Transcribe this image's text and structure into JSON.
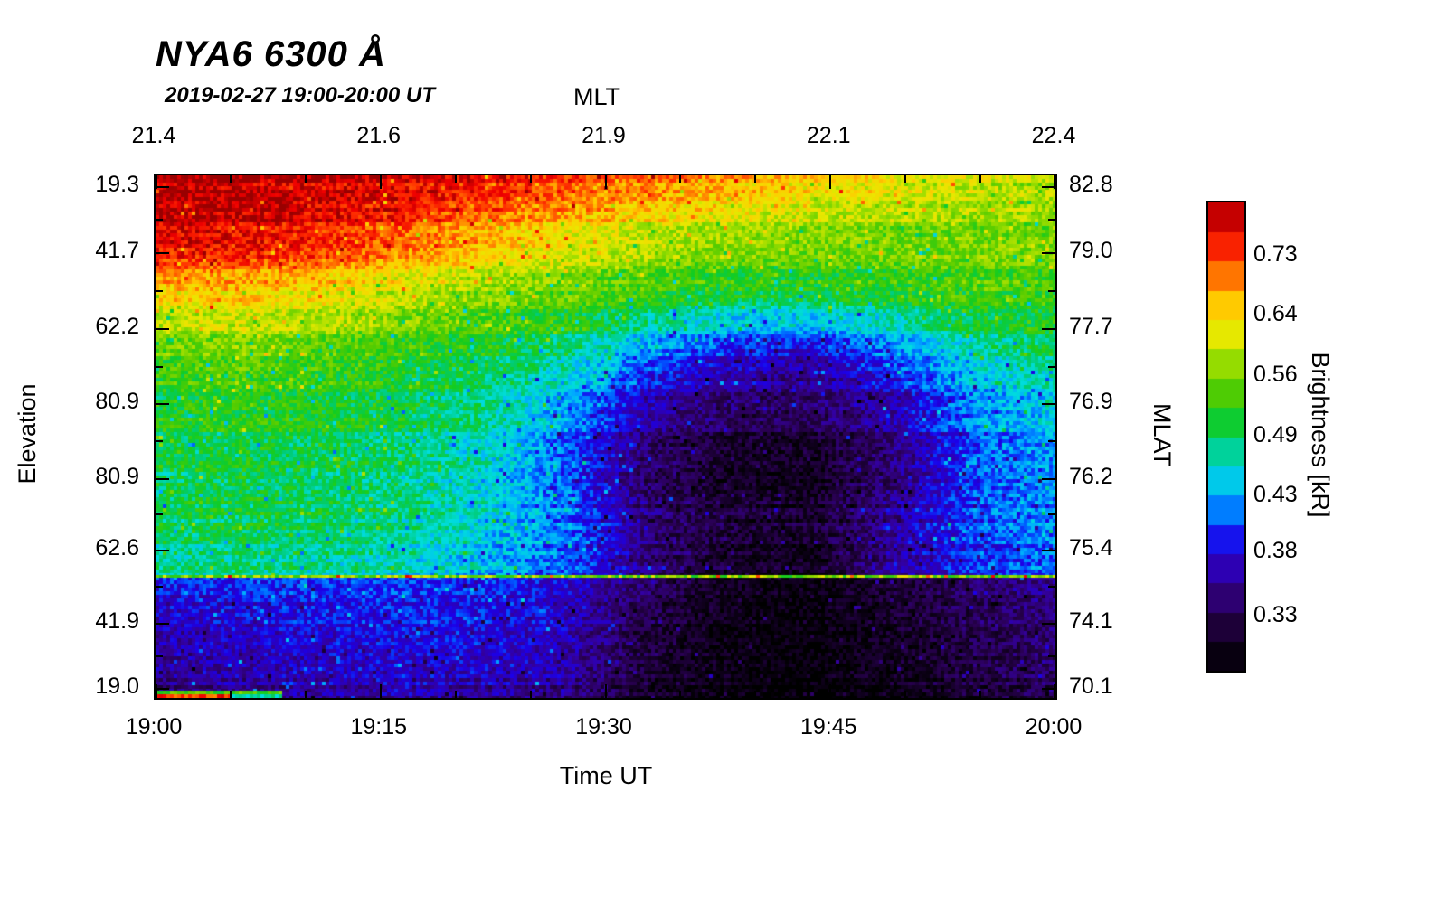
{
  "chart_data": {
    "type": "heatmap",
    "title": "NYA6 6300 Å",
    "subtitle": "2019-02-27 19:00-20:00 UT",
    "top_axis": {
      "label": "MLT",
      "tick_labels": [
        "21.4",
        "21.6",
        "21.9",
        "22.1",
        "22.4"
      ],
      "tick_positions": [
        0,
        0.25,
        0.5,
        0.75,
        1
      ]
    },
    "bottom_axis": {
      "label": "Time UT",
      "tick_labels": [
        "19:00",
        "19:15",
        "19:30",
        "19:45",
        "20:00"
      ],
      "tick_positions": [
        0,
        0.25,
        0.5,
        0.75,
        1
      ]
    },
    "left_axis": {
      "label": "Elevation",
      "tick_labels": [
        "19.3",
        "41.7",
        "62.2",
        "80.9",
        "80.9",
        "62.6",
        "41.9",
        "19.0"
      ],
      "tick_positions": [
        0.022,
        0.149,
        0.294,
        0.438,
        0.581,
        0.718,
        0.858,
        0.982
      ]
    },
    "right_axis": {
      "label": "MLAT",
      "tick_labels": [
        "82.8",
        "79.0",
        "77.7",
        "76.9",
        "76.2",
        "75.4",
        "74.1",
        "70.1"
      ],
      "tick_positions": [
        0.022,
        0.149,
        0.294,
        0.438,
        0.581,
        0.718,
        0.858,
        0.982
      ]
    },
    "colorbar": {
      "label": "Brightness [kR]",
      "tick_labels": [
        "0.73",
        "0.64",
        "0.56",
        "0.49",
        "0.43",
        "0.38",
        "0.33"
      ],
      "vmin": 0.293,
      "vmax": 0.82,
      "scale": "log"
    },
    "colormap": [
      [
        0.0,
        "#000000"
      ],
      [
        0.06,
        "#10001e"
      ],
      [
        0.13,
        "#2a0054"
      ],
      [
        0.2,
        "#3300a0"
      ],
      [
        0.27,
        "#1c00e8"
      ],
      [
        0.32,
        "#0055ff"
      ],
      [
        0.37,
        "#00aaff"
      ],
      [
        0.43,
        "#00dddd"
      ],
      [
        0.49,
        "#00cc77"
      ],
      [
        0.54,
        "#11cc22"
      ],
      [
        0.6,
        "#55cc00"
      ],
      [
        0.66,
        "#99dd00"
      ],
      [
        0.72,
        "#e8e800"
      ],
      [
        0.78,
        "#ffcc00"
      ],
      [
        0.83,
        "#ff8800"
      ],
      [
        0.89,
        "#ff3300"
      ],
      [
        0.94,
        "#ee0000"
      ],
      [
        1.0,
        "#990000"
      ]
    ],
    "upper_rows": 8,
    "grid_values_kR": [
      [
        0.82,
        0.81,
        0.8,
        0.79,
        0.77,
        0.74,
        0.71,
        0.68,
        0.65,
        0.63,
        0.61,
        0.59
      ],
      [
        0.79,
        0.78,
        0.76,
        0.72,
        0.67,
        0.63,
        0.6,
        0.58,
        0.57,
        0.56,
        0.56,
        0.56
      ],
      [
        0.64,
        0.65,
        0.63,
        0.6,
        0.57,
        0.55,
        0.53,
        0.51,
        0.51,
        0.52,
        0.54,
        0.53
      ],
      [
        0.55,
        0.56,
        0.55,
        0.53,
        0.51,
        0.49,
        0.43,
        0.39,
        0.38,
        0.42,
        0.47,
        0.5
      ],
      [
        0.51,
        0.52,
        0.51,
        0.5,
        0.48,
        0.43,
        0.365,
        0.34,
        0.335,
        0.365,
        0.42,
        0.45
      ],
      [
        0.5,
        0.51,
        0.5,
        0.49,
        0.46,
        0.41,
        0.34,
        0.315,
        0.31,
        0.35,
        0.41,
        0.43
      ],
      [
        0.49,
        0.5,
        0.49,
        0.48,
        0.45,
        0.415,
        0.345,
        0.32,
        0.315,
        0.355,
        0.405,
        0.42
      ],
      [
        0.47,
        0.48,
        0.47,
        0.46,
        0.44,
        0.41,
        0.35,
        0.315,
        0.305,
        0.36,
        0.395,
        0.41
      ],
      [
        0.385,
        0.39,
        0.395,
        0.395,
        0.39,
        0.375,
        0.335,
        0.305,
        0.3,
        0.315,
        0.335,
        0.35
      ],
      [
        0.36,
        0.37,
        0.375,
        0.38,
        0.38,
        0.365,
        0.32,
        0.3,
        0.295,
        0.31,
        0.325,
        0.34
      ],
      [
        0.35,
        0.355,
        0.36,
        0.365,
        0.36,
        0.35,
        0.315,
        0.3,
        0.295,
        0.305,
        0.32,
        0.335
      ]
    ],
    "overlays": {
      "bright_line_y_frac": 0.766,
      "bright_line_value_kR": 0.55,
      "bottom_left_streak_x_frac": 0.14
    }
  }
}
